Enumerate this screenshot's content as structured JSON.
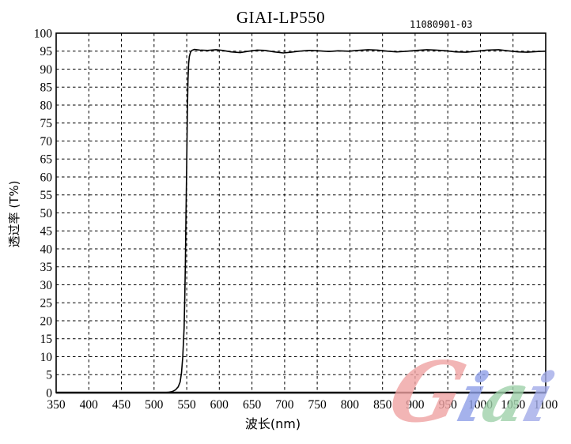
{
  "header": {
    "title": "GIAI-LP550",
    "annotation": "11080901-03"
  },
  "chart_data": {
    "type": "line",
    "title": "GIAI-LP550",
    "xlabel": "波长(nm)",
    "ylabel": "透过率 (T%)",
    "xlim": [
      350,
      1100
    ],
    "ylim": [
      0,
      100
    ],
    "x_tick_step": 50,
    "y_tick_step": 5,
    "grid": "dashed",
    "grid_color": "#000000",
    "curve_color": "#000000",
    "legend": "none",
    "description": "Long-pass filter transmission spectrum: ~0% below 540 nm, sharp cut-on at 550 nm, plateau ~95% from 560 to 1100 nm",
    "series": [
      {
        "name": "GIAI-LP550 transmittance",
        "points": [
          [
            350,
            0
          ],
          [
            400,
            0
          ],
          [
            450,
            0
          ],
          [
            500,
            0
          ],
          [
            515,
            0
          ],
          [
            522,
            0.1
          ],
          [
            528,
            0.3
          ],
          [
            533,
            0.8
          ],
          [
            537,
            1.6
          ],
          [
            540,
            3
          ],
          [
            542,
            5.5
          ],
          [
            544,
            10
          ],
          [
            546,
            18
          ],
          [
            547,
            26
          ],
          [
            548,
            36
          ],
          [
            549,
            50
          ],
          [
            550,
            64
          ],
          [
            551,
            78
          ],
          [
            552,
            87
          ],
          [
            553,
            91.5
          ],
          [
            554,
            93.5
          ],
          [
            556,
            94.8
          ],
          [
            558,
            95.2
          ],
          [
            562,
            95.5
          ],
          [
            570,
            95.3
          ],
          [
            582,
            95.2
          ],
          [
            595,
            95.4
          ],
          [
            605,
            95.2
          ],
          [
            618,
            94.8
          ],
          [
            632,
            94.6
          ],
          [
            645,
            95.0
          ],
          [
            658,
            95.3
          ],
          [
            670,
            95.2
          ],
          [
            684,
            94.8
          ],
          [
            698,
            94.5
          ],
          [
            710,
            94.7
          ],
          [
            722,
            95.0
          ],
          [
            738,
            95.2
          ],
          [
            752,
            95.1
          ],
          [
            768,
            94.9
          ],
          [
            782,
            95.1
          ],
          [
            798,
            95.0
          ],
          [
            812,
            95.2
          ],
          [
            828,
            95.4
          ],
          [
            842,
            95.3
          ],
          [
            858,
            95.0
          ],
          [
            872,
            94.8
          ],
          [
            888,
            95.0
          ],
          [
            902,
            95.2
          ],
          [
            918,
            95.4
          ],
          [
            932,
            95.3
          ],
          [
            948,
            95.1
          ],
          [
            962,
            94.8
          ],
          [
            978,
            94.7
          ],
          [
            995,
            95.0
          ],
          [
            1010,
            95.3
          ],
          [
            1028,
            95.4
          ],
          [
            1042,
            95.1
          ],
          [
            1058,
            94.8
          ],
          [
            1072,
            94.7
          ],
          [
            1088,
            94.9
          ],
          [
            1100,
            95.0
          ]
        ]
      }
    ]
  },
  "watermark": {
    "text": "Giai",
    "opacity": 0.8,
    "letters": [
      {
        "char": "G",
        "color": "#f0a3a3"
      },
      {
        "char": "i",
        "color": "#8fa0e8"
      },
      {
        "char": "a",
        "color": "#9fd1ab"
      },
      {
        "char": "i",
        "color": "#a3ace9"
      }
    ]
  }
}
